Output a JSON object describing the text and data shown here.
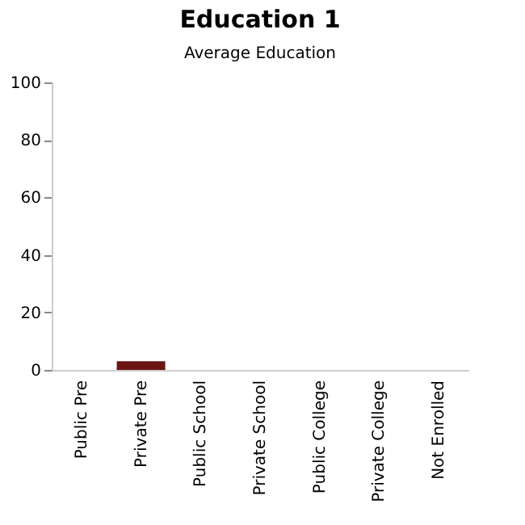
{
  "chart_data": {
    "type": "bar",
    "title": "Education 1",
    "subtitle": "Average Education",
    "categories": [
      "Public Pre",
      "Private Pre",
      "Public School",
      "Private School",
      "Public College",
      "Private College",
      "Not Enrolled"
    ],
    "values": [
      0,
      3,
      0,
      0,
      0,
      0,
      0
    ],
    "colors": [
      "#22a8c4",
      "#6b1414",
      "#175a32",
      "#c8642a",
      "#c8c83a",
      "#8c2282",
      "#9a9a9a"
    ],
    "ylim": [
      0,
      100
    ],
    "yticks": [
      0,
      20,
      40,
      60,
      80,
      100
    ],
    "grid": false,
    "legend": false
  }
}
